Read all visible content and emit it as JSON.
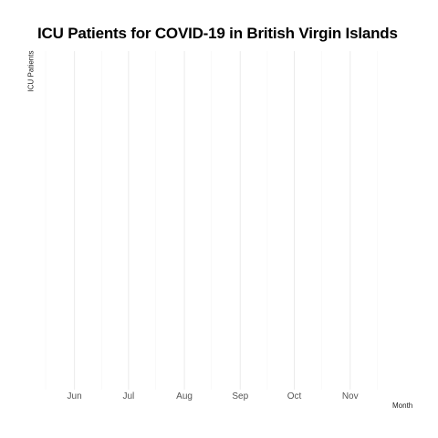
{
  "chart_data": {
    "type": "line",
    "title": "ICU Patients for COVID-19 in British Virgin Islands",
    "xlabel": "Month",
    "ylabel": "ICU Patients",
    "x_tick_labels": [
      "Jun",
      "Jul",
      "Aug",
      "Sep",
      "Oct",
      "Nov"
    ],
    "x_range": [
      "2020-05-16",
      "2020-11-30"
    ],
    "x_major_ticks": [
      "2020-06-01",
      "2020-07-01",
      "2020-08-01",
      "2020-09-01",
      "2020-10-01",
      "2020-11-01"
    ],
    "x_minor_ticks": [
      "2020-05-16",
      "2020-06-16",
      "2020-07-16",
      "2020-08-16",
      "2020-09-16",
      "2020-10-16",
      "2020-11-16"
    ],
    "series": [],
    "grid": true,
    "grid_color": "#ebebeb",
    "background": "#ffffff"
  }
}
